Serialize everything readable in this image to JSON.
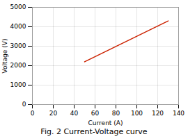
{
  "chart_data": {
    "type": "line",
    "caption": "Fig. 2 Current-Voltage curve",
    "x_label": "Current (A)",
    "y_label": "Voltage (V)",
    "x": [
      50,
      130
    ],
    "values": [
      2200,
      4300
    ],
    "color": "#cc2200",
    "xlim": [
      0,
      140
    ],
    "ylim": [
      0,
      5000
    ],
    "xticks": [
      0,
      20,
      40,
      60,
      80,
      100,
      120,
      140
    ],
    "yticks": [
      0,
      1000,
      2000,
      3000,
      4000,
      5000
    ],
    "grid": true
  }
}
